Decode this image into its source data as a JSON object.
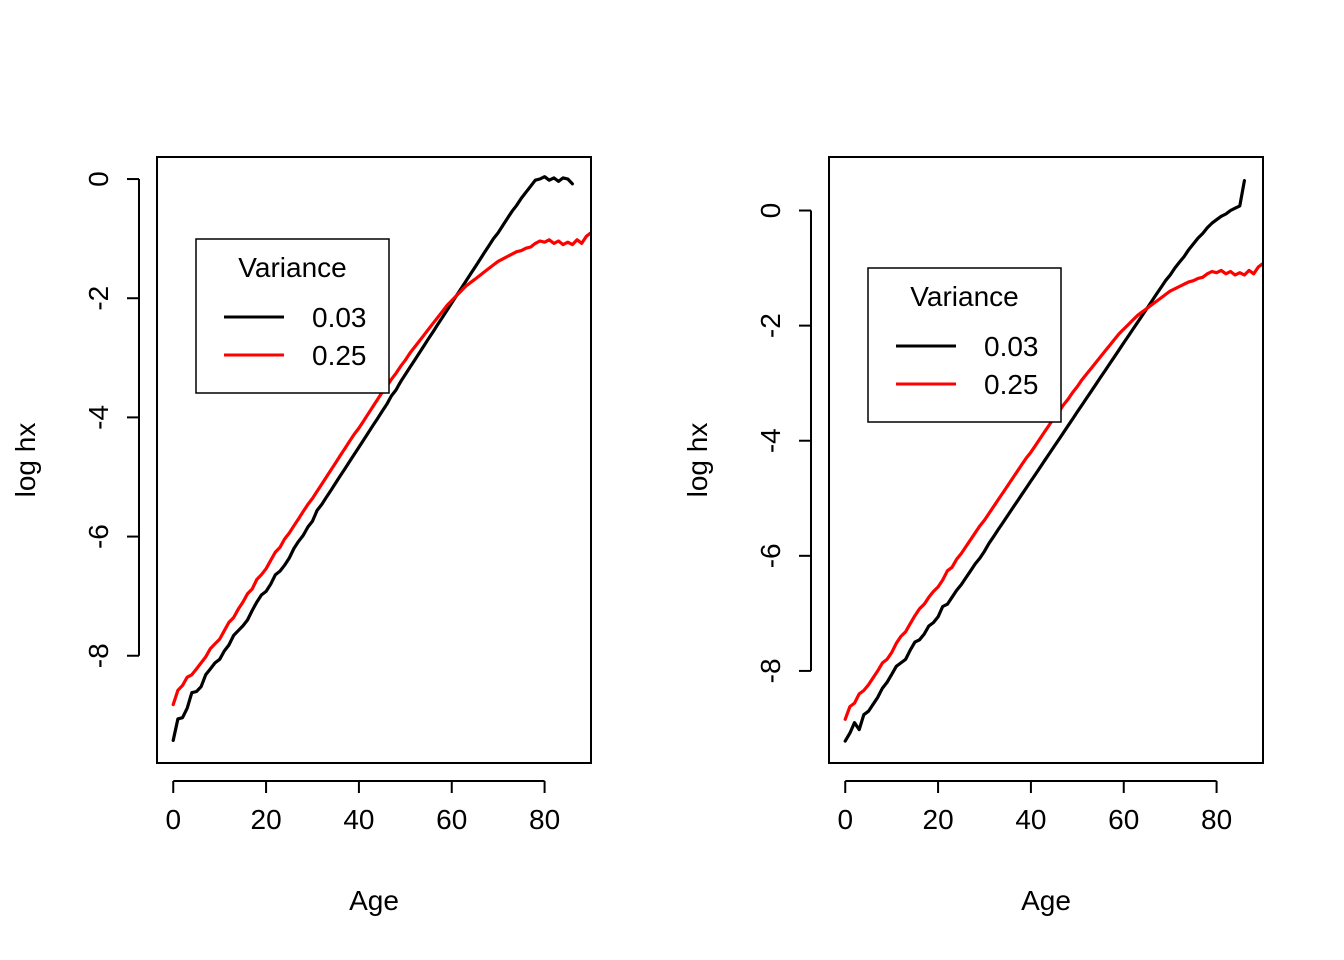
{
  "chart_data": [
    {
      "type": "line",
      "title": "",
      "xlabel": "Age",
      "ylabel": "log hx",
      "xlim": [
        -3.5,
        90
      ],
      "ylim": [
        -9.8,
        0.37
      ],
      "x_ticks": [
        0,
        20,
        40,
        60,
        80
      ],
      "x_tick_labels": [
        "0",
        "20",
        "40",
        "60",
        "80"
      ],
      "y_ticks": [
        0,
        -2,
        -4,
        -6,
        -8
      ],
      "y_tick_labels": [
        "0",
        "-2",
        "-4",
        "-6",
        "-8"
      ],
      "legend": {
        "title": "Variance",
        "position": "upper-left",
        "entries": [
          {
            "label": "0.03",
            "color": "#000000"
          },
          {
            "label": "0.25",
            "color": "#ff0000"
          }
        ]
      },
      "series": [
        {
          "name": "0.03",
          "color": "#000000",
          "x": [
            0,
            1,
            2,
            3,
            4,
            5,
            6,
            7,
            8,
            9,
            10,
            11,
            12,
            13,
            14,
            15,
            16,
            17,
            18,
            19,
            20,
            21,
            22,
            23,
            24,
            25,
            26,
            27,
            28,
            29,
            30,
            31,
            32,
            33,
            34,
            35,
            36,
            37,
            38,
            39,
            40,
            41,
            42,
            43,
            44,
            45,
            46,
            47,
            48,
            49,
            50,
            51,
            52,
            53,
            54,
            55,
            56,
            57,
            58,
            59,
            60,
            61,
            62,
            63,
            64,
            65,
            66,
            67,
            68,
            69,
            70,
            71,
            72,
            73,
            74,
            75,
            76,
            77,
            78,
            79,
            80,
            81,
            82,
            83,
            84,
            85,
            86
          ],
          "y": [
            -9.42,
            -9.06,
            -9.04,
            -8.88,
            -8.62,
            -8.6,
            -8.52,
            -8.32,
            -8.22,
            -8.12,
            -8.06,
            -7.92,
            -7.82,
            -7.66,
            -7.58,
            -7.5,
            -7.4,
            -7.24,
            -7.1,
            -6.98,
            -6.92,
            -6.8,
            -6.64,
            -6.58,
            -6.48,
            -6.36,
            -6.2,
            -6.08,
            -5.98,
            -5.84,
            -5.74,
            -5.56,
            -5.46,
            -5.34,
            -5.22,
            -5.1,
            -4.98,
            -4.86,
            -4.74,
            -4.62,
            -4.5,
            -4.38,
            -4.26,
            -4.14,
            -4.02,
            -3.9,
            -3.78,
            -3.64,
            -3.54,
            -3.4,
            -3.28,
            -3.16,
            -3.04,
            -2.92,
            -2.8,
            -2.68,
            -2.56,
            -2.44,
            -2.32,
            -2.2,
            -2.08,
            -1.96,
            -1.84,
            -1.72,
            -1.6,
            -1.48,
            -1.36,
            -1.24,
            -1.12,
            -1.0,
            -0.9,
            -0.78,
            -0.66,
            -0.54,
            -0.44,
            -0.32,
            -0.22,
            -0.12,
            -0.02,
            0.0,
            0.04,
            -0.02,
            0.02,
            -0.04,
            0.02,
            0.0,
            -0.08
          ]
        },
        {
          "name": "0.25",
          "color": "#ff0000",
          "x": [
            0,
            1,
            2,
            3,
            4,
            5,
            6,
            7,
            8,
            9,
            10,
            11,
            12,
            13,
            14,
            15,
            16,
            17,
            18,
            19,
            20,
            21,
            22,
            23,
            24,
            25,
            26,
            27,
            28,
            29,
            30,
            31,
            32,
            33,
            34,
            35,
            36,
            37,
            38,
            39,
            40,
            41,
            42,
            43,
            44,
            45,
            46,
            47,
            48,
            49,
            50,
            51,
            52,
            53,
            54,
            55,
            56,
            57,
            58,
            59,
            60,
            61,
            62,
            63,
            64,
            65,
            66,
            67,
            68,
            69,
            70,
            71,
            72,
            73,
            74,
            75,
            76,
            77,
            78,
            79,
            80,
            81,
            82,
            83,
            84,
            85,
            86,
            87,
            88,
            89,
            90
          ],
          "y": [
            -8.82,
            -8.58,
            -8.5,
            -8.36,
            -8.32,
            -8.22,
            -8.12,
            -8.02,
            -7.88,
            -7.8,
            -7.72,
            -7.58,
            -7.44,
            -7.36,
            -7.22,
            -7.1,
            -6.96,
            -6.88,
            -6.72,
            -6.64,
            -6.54,
            -6.4,
            -6.26,
            -6.18,
            -6.04,
            -5.94,
            -5.82,
            -5.7,
            -5.58,
            -5.46,
            -5.36,
            -5.24,
            -5.12,
            -5.0,
            -4.88,
            -4.76,
            -4.64,
            -4.52,
            -4.4,
            -4.28,
            -4.18,
            -4.06,
            -3.94,
            -3.82,
            -3.7,
            -3.58,
            -3.48,
            -3.36,
            -3.26,
            -3.14,
            -3.04,
            -2.92,
            -2.82,
            -2.72,
            -2.62,
            -2.52,
            -2.42,
            -2.32,
            -2.22,
            -2.12,
            -2.04,
            -1.96,
            -1.88,
            -1.8,
            -1.74,
            -1.68,
            -1.62,
            -1.56,
            -1.5,
            -1.44,
            -1.38,
            -1.34,
            -1.3,
            -1.26,
            -1.22,
            -1.2,
            -1.16,
            -1.14,
            -1.08,
            -1.04,
            -1.06,
            -1.02,
            -1.08,
            -1.04,
            -1.1,
            -1.06,
            -1.1,
            -1.02,
            -1.08,
            -0.96,
            -0.9
          ]
        }
      ]
    },
    {
      "type": "line",
      "title": "",
      "xlabel": "Age",
      "ylabel": "log hx",
      "xlim": [
        -3.5,
        90
      ],
      "ylim": [
        -9.6,
        0.93
      ],
      "x_ticks": [
        0,
        20,
        40,
        60,
        80
      ],
      "x_tick_labels": [
        "0",
        "20",
        "40",
        "60",
        "80"
      ],
      "y_ticks": [
        0,
        -2,
        -4,
        -6,
        -8
      ],
      "y_tick_labels": [
        "0",
        "-2",
        "-4",
        "-6",
        "-8"
      ],
      "legend": {
        "title": "Variance",
        "position": "upper-left",
        "entries": [
          {
            "label": "0.03",
            "color": "#000000"
          },
          {
            "label": "0.25",
            "color": "#ff0000"
          }
        ]
      },
      "series": [
        {
          "name": "0.03",
          "color": "#000000",
          "x": [
            0,
            1,
            2,
            3,
            4,
            5,
            6,
            7,
            8,
            9,
            10,
            11,
            12,
            13,
            14,
            15,
            16,
            17,
            18,
            19,
            20,
            21,
            22,
            23,
            24,
            25,
            26,
            27,
            28,
            29,
            30,
            31,
            32,
            33,
            34,
            35,
            36,
            37,
            38,
            39,
            40,
            41,
            42,
            43,
            44,
            45,
            46,
            47,
            48,
            49,
            50,
            51,
            52,
            53,
            54,
            55,
            56,
            57,
            58,
            59,
            60,
            61,
            62,
            63,
            64,
            65,
            66,
            67,
            68,
            69,
            70,
            71,
            72,
            73,
            74,
            75,
            76,
            77,
            78,
            79,
            80,
            81,
            82,
            83,
            84,
            85,
            86
          ],
          "y": [
            -9.22,
            -9.08,
            -8.9,
            -9.02,
            -8.76,
            -8.7,
            -8.58,
            -8.46,
            -8.3,
            -8.2,
            -8.06,
            -7.92,
            -7.86,
            -7.8,
            -7.64,
            -7.5,
            -7.46,
            -7.36,
            -7.22,
            -7.16,
            -7.06,
            -6.88,
            -6.84,
            -6.72,
            -6.6,
            -6.5,
            -6.38,
            -6.26,
            -6.14,
            -6.04,
            -5.92,
            -5.78,
            -5.66,
            -5.54,
            -5.42,
            -5.3,
            -5.18,
            -5.06,
            -4.94,
            -4.82,
            -4.7,
            -4.58,
            -4.46,
            -4.34,
            -4.22,
            -4.1,
            -3.98,
            -3.86,
            -3.74,
            -3.62,
            -3.5,
            -3.38,
            -3.26,
            -3.14,
            -3.02,
            -2.9,
            -2.78,
            -2.66,
            -2.54,
            -2.42,
            -2.3,
            -2.18,
            -2.06,
            -1.94,
            -1.82,
            -1.7,
            -1.58,
            -1.46,
            -1.34,
            -1.22,
            -1.12,
            -1.0,
            -0.9,
            -0.8,
            -0.68,
            -0.58,
            -0.48,
            -0.4,
            -0.3,
            -0.22,
            -0.16,
            -0.1,
            -0.06,
            -0.0,
            0.04,
            0.08,
            0.52
          ]
        },
        {
          "name": "0.25",
          "color": "#ff0000",
          "x": [
            0,
            1,
            2,
            3,
            4,
            5,
            6,
            7,
            8,
            9,
            10,
            11,
            12,
            13,
            14,
            15,
            16,
            17,
            18,
            19,
            20,
            21,
            22,
            23,
            24,
            25,
            26,
            27,
            28,
            29,
            30,
            31,
            32,
            33,
            34,
            35,
            36,
            37,
            38,
            39,
            40,
            41,
            42,
            43,
            44,
            45,
            46,
            47,
            48,
            49,
            50,
            51,
            52,
            53,
            54,
            55,
            56,
            57,
            58,
            59,
            60,
            61,
            62,
            63,
            64,
            65,
            66,
            67,
            68,
            69,
            70,
            71,
            72,
            73,
            74,
            75,
            76,
            77,
            78,
            79,
            80,
            81,
            82,
            83,
            84,
            85,
            86,
            87,
            88,
            89,
            90
          ],
          "y": [
            -8.84,
            -8.62,
            -8.56,
            -8.4,
            -8.34,
            -8.24,
            -8.12,
            -8.0,
            -7.86,
            -7.8,
            -7.68,
            -7.52,
            -7.4,
            -7.32,
            -7.18,
            -7.04,
            -6.92,
            -6.84,
            -6.72,
            -6.62,
            -6.54,
            -6.42,
            -6.26,
            -6.2,
            -6.06,
            -5.96,
            -5.84,
            -5.72,
            -5.6,
            -5.48,
            -5.38,
            -5.26,
            -5.14,
            -5.02,
            -4.9,
            -4.78,
            -4.66,
            -4.54,
            -4.42,
            -4.3,
            -4.2,
            -4.08,
            -3.96,
            -3.84,
            -3.72,
            -3.6,
            -3.5,
            -3.38,
            -3.28,
            -3.16,
            -3.06,
            -2.94,
            -2.84,
            -2.74,
            -2.64,
            -2.54,
            -2.44,
            -2.34,
            -2.24,
            -2.14,
            -2.06,
            -1.98,
            -1.9,
            -1.82,
            -1.76,
            -1.7,
            -1.64,
            -1.58,
            -1.52,
            -1.46,
            -1.4,
            -1.36,
            -1.32,
            -1.28,
            -1.24,
            -1.22,
            -1.18,
            -1.16,
            -1.1,
            -1.06,
            -1.08,
            -1.04,
            -1.1,
            -1.06,
            -1.12,
            -1.08,
            -1.12,
            -1.04,
            -1.1,
            -0.98,
            -0.92
          ]
        }
      ]
    }
  ]
}
